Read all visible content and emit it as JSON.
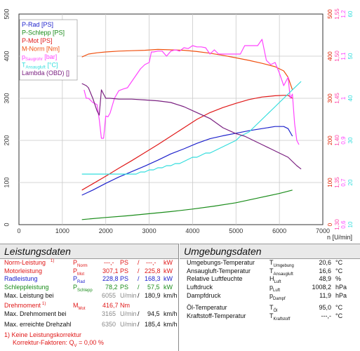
{
  "chart_data": {
    "type": "line",
    "xlabel": "n [U/min]",
    "xlim": [
      0,
      7000
    ],
    "x_ticks": [
      "0",
      "1000",
      "2000",
      "3000",
      "4000",
      "5000",
      "6000",
      "7000"
    ],
    "left_axis": {
      "ylim": [
        0,
        500
      ],
      "ticks": [
        "0",
        "100",
        "200",
        "300",
        "400",
        "500"
      ]
    },
    "right_axis_1": {
      "color": "#e02000",
      "ylim": [
        0,
        500
      ],
      "ticks": [
        "0",
        "100",
        "200",
        "300",
        "400",
        "500"
      ]
    },
    "right_axis_2": {
      "color": "#ff44aa",
      "ticks": [
        {
          "v": 0,
          "label": "1,30"
        },
        {
          "v": 100,
          "label": "1,35"
        },
        {
          "v": 200,
          "label": "1,40"
        },
        {
          "v": 300,
          "label": "1,45"
        },
        {
          "v": 400,
          "label": "1,50"
        },
        {
          "v": 500,
          "label": "1,55"
        }
      ]
    },
    "right_axis_3": {
      "color": "#ff44ff",
      "ticks": [
        {
          "v": 0,
          "label": "0,6"
        },
        {
          "v": 100,
          "label": "0,7"
        },
        {
          "v": 200,
          "label": "0,9"
        },
        {
          "v": 300,
          "label": "1"
        },
        {
          "v": 400,
          "label": "1,1"
        },
        {
          "v": 500,
          "label": "1,2"
        }
      ]
    },
    "right_axis_4": {
      "color": "#33dddd",
      "ticks": [
        {
          "v": 0,
          "label": "10"
        },
        {
          "v": 100,
          "label": "20"
        },
        {
          "v": 200,
          "label": "30"
        },
        {
          "v": 300,
          "label": "40"
        },
        {
          "v": 400,
          "label": "50"
        },
        {
          "v": 500,
          "label": "60"
        }
      ]
    },
    "legend_position": "top-left",
    "legend": [
      {
        "label": "P-Rad [PS]",
        "color": "#1e22cc"
      },
      {
        "label": "P-Schlepp [PS]",
        "color": "#1a8c1a"
      },
      {
        "label": "P-Mot [PS]",
        "color": "#e01818"
      },
      {
        "label": "M-Norm [Nm]",
        "color": "#f05010"
      },
      {
        "label": "pSaugrohr [bar]",
        "color": "#ff44ff"
      },
      {
        "label": "TAnsaugluft [°C]",
        "color": "#33dddd"
      },
      {
        "label": "Lambda (OBD) []",
        "color": "#7a2080"
      }
    ],
    "series": [
      {
        "name": "P-Rad [PS]",
        "color": "#1e22cc",
        "x": [
          1450,
          1700,
          2000,
          2300,
          2600,
          2900,
          3200,
          3500,
          3800,
          4100,
          4400,
          4700,
          5000,
          5300,
          5600,
          5900,
          6100,
          6200,
          6300
        ],
        "y": [
          70,
          82,
          98,
          113,
          126,
          139,
          153,
          168,
          180,
          193,
          204,
          211,
          217,
          223,
          228,
          233,
          233,
          228,
          210
        ]
      },
      {
        "name": "P-Schlepp [PS]",
        "color": "#1a8c1a",
        "x": [
          1450,
          2000,
          2500,
          3000,
          3500,
          4000,
          4500,
          5000,
          5500,
          6000,
          6300
        ],
        "y": [
          12,
          17,
          21,
          26,
          31,
          37,
          44,
          52,
          63,
          74,
          82
        ]
      },
      {
        "name": "P-Mot [PS]",
        "color": "#e01818",
        "x": [
          1450,
          1700,
          2000,
          2300,
          2600,
          2900,
          3200,
          3500,
          3800,
          4100,
          4400,
          4700,
          5000,
          5300,
          5600,
          5900,
          6100,
          6200,
          6300
        ],
        "y": [
          82,
          97,
          115,
          134,
          152,
          171,
          190,
          210,
          230,
          250,
          266,
          278,
          288,
          297,
          303,
          306,
          307,
          307,
          300
        ]
      },
      {
        "name": "M-Norm [Nm]",
        "color": "#f05010",
        "x": [
          1450,
          1600,
          1800,
          2000,
          2300,
          2600,
          2900,
          3200,
          3500,
          3800,
          4100,
          4400,
          4700,
          5000,
          5300,
          5600,
          5900,
          6100,
          6200,
          6300
        ],
        "y": [
          398,
          405,
          408,
          410,
          412,
          413,
          414,
          416,
          415,
          414,
          411,
          407,
          402,
          396,
          390,
          383,
          375,
          365,
          350,
          320
        ]
      },
      {
        "name": "pSaugrohr [bar]",
        "color": "#ff44ff",
        "x": [
          1500,
          1550,
          1600,
          1700,
          1800,
          1850,
          1900,
          1950,
          2000,
          2050,
          2100,
          2200,
          2300,
          2400,
          2500,
          2600,
          2700,
          2800,
          2900,
          3000,
          3050,
          3100,
          3200,
          3300,
          3400,
          3500,
          3600,
          3700,
          3800,
          3900,
          4000,
          4100,
          4200,
          4300,
          4400,
          4500,
          4600,
          4700,
          4800,
          4900,
          5000,
          5100,
          5200,
          5300,
          5400,
          5500,
          5600,
          5700,
          5800,
          5900,
          6000,
          6100,
          6200,
          6250,
          6300,
          6350,
          6400,
          6450
        ],
        "y": [
          320,
          300,
          300,
          290,
          285,
          250,
          205,
          205,
          258,
          256,
          265,
          300,
          318,
          322,
          325,
          340,
          355,
          370,
          380,
          385,
          410,
          410,
          412,
          412,
          400,
          412,
          415,
          412,
          420,
          418,
          425,
          422,
          422,
          420,
          405,
          415,
          405,
          405,
          405,
          405,
          405,
          405,
          425,
          425,
          425,
          425,
          440,
          390,
          380,
          385,
          360,
          330,
          350,
          300,
          310,
          240,
          200,
          190
        ]
      },
      {
        "name": "TAnsaugluft [°C]",
        "color": "#33dddd",
        "x": [
          1450,
          1700,
          1900,
          2100,
          2300,
          2500,
          2700,
          2800,
          2900,
          3000,
          3100,
          3200,
          3300,
          3400,
          3500,
          3600,
          3700,
          3800,
          3900,
          4000,
          4100,
          4200,
          4300,
          4400,
          4500,
          4600,
          4700,
          4800,
          4900,
          5000,
          5100,
          5200,
          5300,
          5400,
          5500,
          5600,
          5700,
          5800,
          5900,
          6000,
          6100,
          6200,
          6300,
          6400,
          6500
        ],
        "y": [
          120,
          120,
          120,
          120,
          120,
          120,
          120,
          125,
          125,
          130,
          130,
          135,
          135,
          140,
          140,
          145,
          145,
          150,
          155,
          160,
          160,
          165,
          170,
          170,
          175,
          180,
          185,
          190,
          195,
          200,
          210,
          215,
          220,
          230,
          240,
          250,
          260,
          270,
          280,
          290,
          300,
          310,
          320,
          330,
          340
        ]
      },
      {
        "name": "Lambda (OBD) []",
        "color": "#7a2080",
        "x": [
          1450,
          1550,
          1600,
          1700,
          1800,
          1850,
          1900,
          2000,
          2100,
          2300,
          2600,
          2900,
          3200,
          3500,
          3800,
          4100,
          4400,
          4700,
          5000,
          5200,
          5400,
          5600,
          5800,
          6000,
          6200,
          6300,
          6400,
          6500
        ],
        "y": [
          335,
          330,
          325,
          300,
          270,
          260,
          320,
          300,
          300,
          298,
          298,
          296,
          294,
          290,
          280,
          266,
          252,
          230,
          216,
          210,
          200,
          190,
          180,
          170,
          160,
          150,
          140,
          132
        ]
      }
    ]
  },
  "left": {
    "title": "Leistungsdaten",
    "norm": {
      "label": "Norm-Leistung",
      "fn": "1)",
      "sym": "P",
      "sub": "Norm",
      "v1": "---,-",
      "u1": "PS",
      "sep": "/",
      "v2": "---,-",
      "u2": "kW"
    },
    "motor": {
      "label": "Motorleistung",
      "sym": "P",
      "sub": "Mot",
      "v1": "307,1",
      "u1": "PS",
      "sep": "/",
      "v2": "225,8",
      "u2": "kW"
    },
    "rad": {
      "label": "Radleistung",
      "sym": "P",
      "sub": "Rad",
      "v1": "228,8",
      "u1": "PS",
      "sep": "/",
      "v2": "168,3",
      "u2": "kW"
    },
    "schlepp": {
      "label": "Schleppleistung",
      "sym": "P",
      "sub": "Schlepp",
      "v1": "78,2",
      "u1": "PS",
      "sep": "/",
      "v2": "57,5",
      "u2": "kW"
    },
    "maxbei": {
      "label": "Max. Leistung bei",
      "rpm": "6055",
      "u1": "U/min",
      "sep": "/",
      "v2": "180,9",
      "u2": "km/h"
    },
    "drehmoment": {
      "label": "Drehmoment",
      "fn": "1)",
      "sym": "M",
      "sub": "Mot",
      "v1": "416,7",
      "u1": "Nm"
    },
    "maxdreh": {
      "label": "Max. Drehmoment bei",
      "rpm": "3165",
      "u1": "U/min",
      "sep": "/",
      "v2": "94,5",
      "u2": "km/h"
    },
    "drehzahl": {
      "label": "Max. erreichte Drehzahl",
      "rpm": "6350",
      "u1": "U/min",
      "sep": "/",
      "v2": "185,4",
      "u2": "km/h"
    },
    "note1": "1) Keine Leistungskorrektur",
    "note2": "Korrektur-Faktoren: Q",
    "note2b": "V",
    "note2c": "=   0,00 %"
  },
  "right": {
    "title": "Umgebungsdaten",
    "rows": [
      {
        "label": "Umgebungs-Temperatur",
        "sym": "T",
        "sub": "Umgebung",
        "val": "20,6",
        "unit": "°C"
      },
      {
        "label": "Ansaugluft-Temperatur",
        "sym": "T",
        "sub": "Ansaugluft",
        "val": "16,6",
        "unit": "°C"
      },
      {
        "label": "Relative Luftfeuchte",
        "sym": "H",
        "sub": "Luft",
        "val": "48,9",
        "unit": "%"
      },
      {
        "label": "Luftdruck",
        "sym": "p",
        "sub": "Luft",
        "val": "1008,2",
        "unit": "hPa"
      },
      {
        "label": "Dampfdruck",
        "sym": "p",
        "sub": "Dampf",
        "val": "11,9",
        "unit": "hPa"
      }
    ],
    "oel": {
      "label": "Öl-Temperatur",
      "sym": "T",
      "sub": "Öl",
      "val": "95,0",
      "unit": "°C"
    },
    "kraftstoff": {
      "label": "Kraftstoff-Temperatur",
      "sym": "T",
      "sub": "Kraftstoff",
      "val": "---,-",
      "unit": "°C"
    }
  }
}
